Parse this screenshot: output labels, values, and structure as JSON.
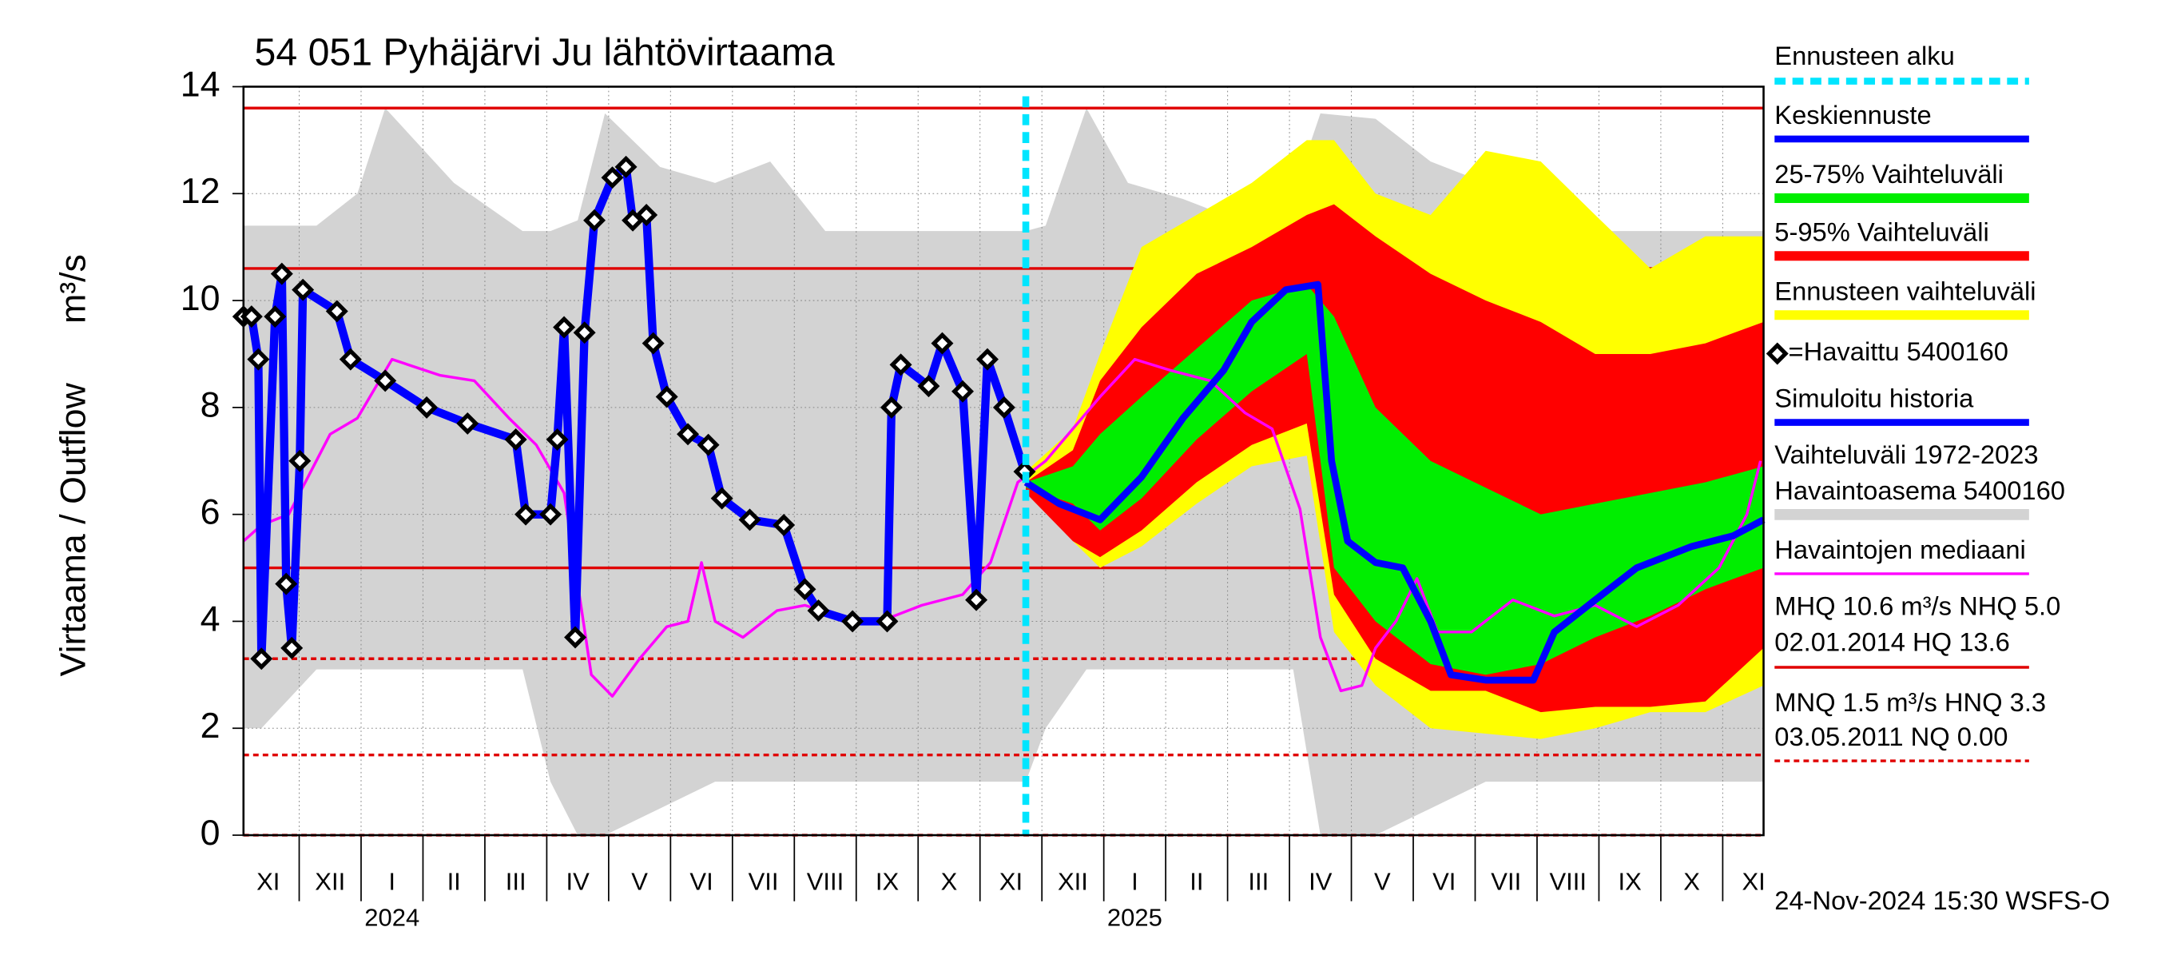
{
  "chart_data": {
    "type": "hydrograph",
    "title": "54 051 Pyhäjärvi Ju lähtövirtaama",
    "ylabel": "Virtaama / Outflow",
    "yunit": "m³/s",
    "ylim": [
      0,
      14
    ],
    "yticks": [
      0,
      2,
      4,
      6,
      8,
      10,
      12,
      14
    ],
    "grid": true,
    "xlim": [
      0.1,
      24.66
    ],
    "xticks": [
      {
        "value": 0.5,
        "label": "XI"
      },
      {
        "value": 1.5,
        "label": "XII"
      },
      {
        "value": 2.5,
        "label": "I"
      },
      {
        "value": 3.5,
        "label": "II"
      },
      {
        "value": 4.5,
        "label": "III"
      },
      {
        "value": 5.5,
        "label": "IV"
      },
      {
        "value": 6.5,
        "label": "V"
      },
      {
        "value": 7.5,
        "label": "VI"
      },
      {
        "value": 8.5,
        "label": "VII"
      },
      {
        "value": 9.5,
        "label": "VIII"
      },
      {
        "value": 10.5,
        "label": "IX"
      },
      {
        "value": 11.5,
        "label": "X"
      },
      {
        "value": 12.5,
        "label": "XI"
      },
      {
        "value": 13.5,
        "label": "XII"
      },
      {
        "value": 14.5,
        "label": "I"
      },
      {
        "value": 15.5,
        "label": "II"
      },
      {
        "value": 16.5,
        "label": "III"
      },
      {
        "value": 17.5,
        "label": "IV"
      },
      {
        "value": 18.5,
        "label": "V"
      },
      {
        "value": 19.5,
        "label": "VI"
      },
      {
        "value": 20.5,
        "label": "VII"
      },
      {
        "value": 21.5,
        "label": "VIII"
      },
      {
        "value": 22.5,
        "label": "IX"
      },
      {
        "value": 23.5,
        "label": "X"
      },
      {
        "value": 24.5,
        "label": "XI"
      }
    ],
    "year_labels": [
      {
        "value": 2.5,
        "label": "2024"
      },
      {
        "value": 14.5,
        "label": "2025"
      }
    ],
    "forecast_start": {
      "name": "Ennusteen alku",
      "color": "#00e5ff",
      "x": 12.74
    },
    "hlines": [
      {
        "value": 13.6,
        "color": "#e00000",
        "dashed": false
      },
      {
        "value": 10.6,
        "color": "#e00000",
        "dashed": false
      },
      {
        "value": 5.0,
        "color": "#e00000",
        "dashed": false
      },
      {
        "value": 3.3,
        "color": "#e00000",
        "dashed": true
      },
      {
        "value": 1.5,
        "color": "#e00000",
        "dashed": true
      },
      {
        "value": 0,
        "color": "#e00000",
        "dashed": true
      }
    ],
    "bands": [
      {
        "name": "Vaihteluväli 1972-2023",
        "station": " Havaintoasema 5400160",
        "color": "#d3d3d3",
        "x": [
          0.1,
          0.39,
          1.28,
          1.94,
          2.39,
          3.5,
          4.61,
          5.06,
          5.5,
          5.94,
          6.83,
          7.72,
          8.61,
          9.5,
          10.61,
          11.72,
          12.74,
          13.06,
          13.72,
          14.39,
          15.28,
          16.17,
          17.06,
          17.5,
          18.39,
          19.28,
          20.17,
          21.06,
          21.94,
          22.83,
          23.72,
          24.66
        ],
        "low": [
          2.0,
          2.0,
          3.1,
          3.1,
          3.1,
          3.1,
          3.1,
          1.0,
          0,
          0,
          0.5,
          1.0,
          1.0,
          1.0,
          1.0,
          1.0,
          1.0,
          2.0,
          3.1,
          3.1,
          3.1,
          3.1,
          3.1,
          0,
          0,
          0.5,
          1.0,
          1.0,
          1.0,
          1.0,
          1.0,
          1.0
        ],
        "high": [
          11.4,
          11.4,
          11.4,
          12.0,
          13.6,
          12.2,
          11.3,
          11.3,
          11.5,
          13.5,
          12.5,
          12.2,
          12.6,
          11.3,
          11.3,
          11.3,
          11.3,
          11.4,
          13.6,
          12.2,
          11.9,
          11.5,
          12.0,
          13.5,
          13.4,
          12.6,
          12.2,
          12.6,
          11.3,
          11.3,
          11.3,
          11.3
        ]
      },
      {
        "name": "Ennusteen vaihteluväli",
        "color": "#ffff00",
        "x": [
          12.74,
          13.5,
          13.94,
          14.61,
          15.5,
          16.39,
          17.28,
          17.72,
          18.39,
          19.28,
          20.17,
          21.06,
          21.94,
          22.83,
          23.72,
          24.66
        ],
        "low": [
          6.5,
          5.5,
          5.0,
          5.4,
          6.2,
          6.9,
          7.1,
          3.8,
          2.8,
          2.0,
          1.9,
          1.8,
          2.0,
          2.3,
          2.3,
          2.8
        ],
        "high": [
          6.8,
          7.6,
          9.0,
          11.0,
          11.6,
          12.2,
          13.0,
          13.0,
          12.0,
          11.6,
          12.8,
          12.6,
          11.6,
          10.6,
          11.2,
          11.2
        ]
      },
      {
        "name": "5-95% Vaihteluväli",
        "color": "#ff0000",
        "x": [
          12.74,
          13.5,
          13.94,
          14.61,
          15.5,
          16.39,
          17.28,
          17.72,
          18.39,
          19.28,
          20.17,
          21.06,
          21.94,
          22.83,
          23.72,
          24.66
        ],
        "low": [
          6.4,
          5.5,
          5.2,
          5.7,
          6.6,
          7.3,
          7.7,
          4.5,
          3.3,
          2.7,
          2.7,
          2.3,
          2.4,
          2.4,
          2.5,
          3.5
        ],
        "high": [
          6.6,
          7.2,
          8.5,
          9.5,
          10.5,
          11.0,
          11.6,
          11.8,
          11.2,
          10.5,
          10.0,
          9.6,
          9.0,
          9.0,
          9.2,
          9.6
        ]
      },
      {
        "name": "25-75% Vaihteluväli",
        "color": "#00ee00",
        "x": [
          12.74,
          13.5,
          13.94,
          14.61,
          15.5,
          16.39,
          17.28,
          17.72,
          18.39,
          19.28,
          20.17,
          21.06,
          21.94,
          22.83,
          23.72,
          24.66
        ],
        "low": [
          6.5,
          6.2,
          5.7,
          6.3,
          7.4,
          8.3,
          9.0,
          5.0,
          4.0,
          3.2,
          3.0,
          3.2,
          3.7,
          4.1,
          4.6,
          5.0
        ],
        "high": [
          6.6,
          6.9,
          7.5,
          8.2,
          9.1,
          10.0,
          10.3,
          9.7,
          8.0,
          7.0,
          6.5,
          6.0,
          6.2,
          6.4,
          6.6,
          6.9
        ]
      }
    ],
    "series": [
      {
        "name": "Havaintojen mediaani",
        "color": "#ff00ff",
        "width": 2,
        "x": [
          0.1,
          0.39,
          0.83,
          1.5,
          1.94,
          2.5,
          3.28,
          3.83,
          4.39,
          4.83,
          5.28,
          5.5,
          5.72,
          6.06,
          6.5,
          6.94,
          7.28,
          7.5,
          7.72,
          8.17,
          8.72,
          9.17,
          9.72,
          10.39,
          11.06,
          11.72,
          12.17,
          12.61,
          13.06,
          13.5,
          13.94,
          14.5,
          15.06,
          15.72,
          16.28,
          16.72,
          17.17,
          17.5,
          17.83,
          18.17,
          18.39,
          18.72,
          19.06,
          19.39,
          19.94,
          20.61,
          21.28,
          21.94,
          22.61,
          23.28,
          23.94,
          24.39,
          24.61
        ],
        "values": [
          5.5,
          5.8,
          6.0,
          7.5,
          7.8,
          8.9,
          8.6,
          8.5,
          7.8,
          7.3,
          6.4,
          4.7,
          3.0,
          2.6,
          3.3,
          3.9,
          4.0,
          5.1,
          4.0,
          3.7,
          4.2,
          4.3,
          4.1,
          4.0,
          4.3,
          4.5,
          5.1,
          6.6,
          7.0,
          7.6,
          8.2,
          8.9,
          8.7,
          8.5,
          7.9,
          7.6,
          6.1,
          3.7,
          2.7,
          2.8,
          3.5,
          4.0,
          4.8,
          3.8,
          3.8,
          4.4,
          4.1,
          4.3,
          3.9,
          4.3,
          5.0,
          6.0,
          7.0
        ]
      },
      {
        "name": "Simuloitu historia",
        "color": "#0000ff",
        "width": 6,
        "x": [
          0.1,
          0.23,
          0.34,
          0.39,
          0.61,
          0.72,
          0.79,
          0.88,
          1.01,
          1.06,
          1.61,
          1.83,
          2.39,
          3.06,
          3.72,
          4.5,
          4.66,
          5.06,
          5.17,
          5.28,
          5.46,
          5.61,
          5.77,
          6.06,
          6.28,
          6.39,
          6.61,
          6.72,
          6.94,
          7.28,
          7.61,
          7.83,
          8.28,
          8.83,
          9.17,
          9.39,
          9.94,
          10.5,
          10.57,
          10.72,
          11.17,
          11.39,
          11.72,
          11.94,
          12.12,
          12.39,
          12.72
        ],
        "values": [
          9.7,
          9.7,
          8.9,
          3.3,
          9.7,
          10.5,
          4.7,
          3.5,
          7.0,
          10.2,
          9.8,
          8.9,
          8.5,
          8.0,
          7.7,
          7.4,
          6.0,
          6.0,
          7.4,
          9.5,
          3.7,
          9.4,
          11.5,
          12.3,
          12.5,
          11.5,
          11.6,
          9.2,
          8.2,
          7.5,
          7.3,
          6.3,
          5.9,
          5.8,
          4.6,
          4.2,
          4.0,
          4.0,
          8.0,
          8.8,
          8.4,
          9.2,
          8.3,
          4.4,
          8.9,
          8.0,
          6.8
        ]
      },
      {
        "name": "=Havaittu 5400160",
        "color": "#000000",
        "marker": "diamond",
        "x": [
          0.1,
          0.23,
          0.34,
          0.39,
          0.61,
          0.72,
          0.79,
          0.88,
          1.01,
          1.06,
          1.61,
          1.83,
          2.39,
          3.06,
          3.72,
          4.5,
          4.66,
          5.06,
          5.17,
          5.28,
          5.46,
          5.61,
          5.77,
          6.06,
          6.28,
          6.39,
          6.61,
          6.72,
          6.94,
          7.28,
          7.61,
          7.83,
          8.28,
          8.83,
          9.17,
          9.39,
          9.94,
          10.5,
          10.57,
          10.72,
          11.17,
          11.39,
          11.72,
          11.94,
          12.12,
          12.39,
          12.72
        ],
        "values": [
          9.7,
          9.7,
          8.9,
          3.3,
          9.7,
          10.5,
          4.7,
          3.5,
          7.0,
          10.2,
          9.8,
          8.9,
          8.5,
          8.0,
          7.7,
          7.4,
          6.0,
          6.0,
          7.4,
          9.5,
          3.7,
          9.4,
          11.5,
          12.3,
          12.5,
          11.5,
          11.6,
          9.2,
          8.2,
          7.5,
          7.3,
          6.3,
          5.9,
          5.8,
          4.6,
          4.2,
          4.0,
          4.0,
          8.0,
          8.8,
          8.4,
          9.2,
          8.3,
          4.4,
          8.9,
          8.0,
          6.8
        ]
      },
      {
        "name": "Keskiennuste",
        "color": "#0000ff",
        "width": 5,
        "x": [
          12.74,
          13.28,
          13.94,
          14.61,
          15.28,
          15.94,
          16.39,
          16.94,
          17.46,
          17.68,
          17.94,
          18.39,
          18.83,
          19.28,
          19.61,
          20.17,
          20.94,
          21.28,
          21.94,
          22.61,
          23.5,
          24.17,
          24.66
        ],
        "values": [
          6.6,
          6.2,
          5.9,
          6.7,
          7.8,
          8.7,
          9.6,
          10.2,
          10.3,
          7.0,
          5.5,
          5.1,
          5.0,
          4.0,
          3.0,
          2.9,
          2.9,
          3.8,
          4.4,
          5.0,
          5.4,
          5.6,
          5.9
        ]
      }
    ],
    "stats": [
      "MHQ 10.6 m³/s NHQ  5.0",
      "02.01.2014 HQ 13.6",
      "MNQ  1.5 m³/s HNQ  3.3",
      "03.05.2011 NQ 0.00"
    ],
    "footer": "24-Nov-2024 15:30 WSFS-O"
  }
}
